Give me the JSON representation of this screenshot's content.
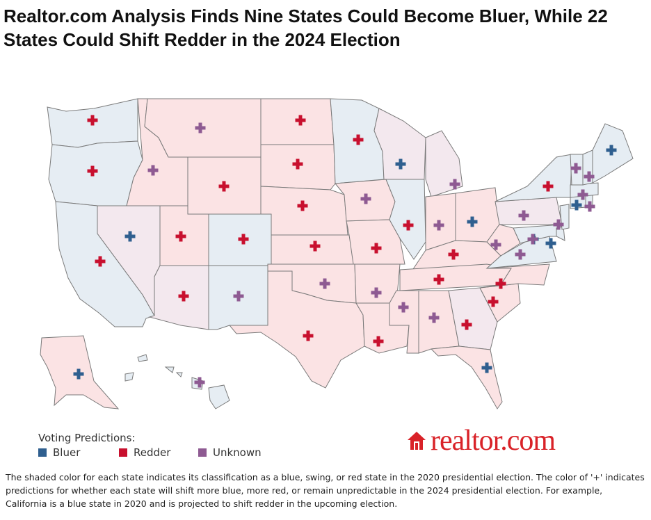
{
  "title": "Realtor.com Analysis Finds Nine States Could Become Bluer, While 22 States Could Shift Redder in the 2024 Election",
  "colors": {
    "blue_state": "#e6edf3",
    "swing_state": "#f3e8ee",
    "red_state": "#fbe3e4",
    "bluer": "#2f5f8f",
    "redder": "#c8102e",
    "unknown": "#8e5a92",
    "brand": "#d92228"
  },
  "legend": {
    "title": "Voting Predictions:",
    "items": [
      {
        "label": "Bluer",
        "color": "#2f5f8f"
      },
      {
        "label": "Redder",
        "color": "#c8102e"
      },
      {
        "label": "Unknown",
        "color": "#8e5a92"
      }
    ]
  },
  "brand": {
    "logo_text": "realtor.com",
    "icon": "house-icon"
  },
  "caption": "The shaded color for each state indicates its classification as a blue, swing, or red state in the 2020 presidential election. The color of '+' indicates predictions for whether each state will shift more blue, more red, or remain unpredictable in the 2024 presidential election. For example, California is a blue state in 2020 and is projected to shift redder in the upcoming election.",
  "map_data": {
    "states": [
      {
        "name": "Washington",
        "class2020": "blue",
        "prediction": "redder"
      },
      {
        "name": "Oregon",
        "class2020": "blue",
        "prediction": "redder"
      },
      {
        "name": "California",
        "class2020": "blue",
        "prediction": "redder"
      },
      {
        "name": "Nevada",
        "class2020": "swing",
        "prediction": "bluer"
      },
      {
        "name": "Idaho",
        "class2020": "red",
        "prediction": "unknown"
      },
      {
        "name": "Montana",
        "class2020": "red",
        "prediction": "unknown"
      },
      {
        "name": "Wyoming",
        "class2020": "red",
        "prediction": "redder"
      },
      {
        "name": "Utah",
        "class2020": "red",
        "prediction": "redder"
      },
      {
        "name": "Colorado",
        "class2020": "blue",
        "prediction": "redder"
      },
      {
        "name": "Arizona",
        "class2020": "swing",
        "prediction": "redder"
      },
      {
        "name": "New Mexico",
        "class2020": "blue",
        "prediction": "unknown"
      },
      {
        "name": "North Dakota",
        "class2020": "red",
        "prediction": "redder"
      },
      {
        "name": "South Dakota",
        "class2020": "red",
        "prediction": "redder"
      },
      {
        "name": "Nebraska",
        "class2020": "red",
        "prediction": "redder"
      },
      {
        "name": "Kansas",
        "class2020": "red",
        "prediction": "redder"
      },
      {
        "name": "Oklahoma",
        "class2020": "red",
        "prediction": "unknown"
      },
      {
        "name": "Texas",
        "class2020": "red",
        "prediction": "redder"
      },
      {
        "name": "Minnesota",
        "class2020": "blue",
        "prediction": "redder"
      },
      {
        "name": "Iowa",
        "class2020": "red",
        "prediction": "unknown"
      },
      {
        "name": "Missouri",
        "class2020": "red",
        "prediction": "redder"
      },
      {
        "name": "Arkansas",
        "class2020": "red",
        "prediction": "unknown"
      },
      {
        "name": "Louisiana",
        "class2020": "red",
        "prediction": "redder"
      },
      {
        "name": "Wisconsin",
        "class2020": "swing",
        "prediction": "bluer"
      },
      {
        "name": "Illinois",
        "class2020": "blue",
        "prediction": "redder"
      },
      {
        "name": "Michigan",
        "class2020": "swing",
        "prediction": "unknown"
      },
      {
        "name": "Indiana",
        "class2020": "red",
        "prediction": "unknown"
      },
      {
        "name": "Ohio",
        "class2020": "red",
        "prediction": "bluer"
      },
      {
        "name": "Kentucky",
        "class2020": "red",
        "prediction": "redder"
      },
      {
        "name": "Tennessee",
        "class2020": "red",
        "prediction": "redder"
      },
      {
        "name": "Mississippi",
        "class2020": "red",
        "prediction": "unknown"
      },
      {
        "name": "Alabama",
        "class2020": "red",
        "prediction": "unknown"
      },
      {
        "name": "Georgia",
        "class2020": "swing",
        "prediction": "redder"
      },
      {
        "name": "Florida",
        "class2020": "red",
        "prediction": "bluer"
      },
      {
        "name": "South Carolina",
        "class2020": "red",
        "prediction": "redder"
      },
      {
        "name": "North Carolina",
        "class2020": "red",
        "prediction": "redder"
      },
      {
        "name": "Virginia",
        "class2020": "blue",
        "prediction": "unknown"
      },
      {
        "name": "West Virginia",
        "class2020": "red",
        "prediction": "unknown"
      },
      {
        "name": "Pennsylvania",
        "class2020": "swing",
        "prediction": "unknown"
      },
      {
        "name": "New York",
        "class2020": "blue",
        "prediction": "redder"
      },
      {
        "name": "Maryland",
        "class2020": "blue",
        "prediction": "bluer"
      },
      {
        "name": "Delaware",
        "class2020": "blue",
        "prediction": "bluer"
      },
      {
        "name": "New Jersey",
        "class2020": "blue",
        "prediction": "unknown"
      },
      {
        "name": "District of Columbia",
        "class2020": "blue",
        "prediction": "unknown"
      },
      {
        "name": "Connecticut",
        "class2020": "blue",
        "prediction": "bluer"
      },
      {
        "name": "Rhode Island",
        "class2020": "blue",
        "prediction": "unknown"
      },
      {
        "name": "Massachusetts",
        "class2020": "blue",
        "prediction": "unknown"
      },
      {
        "name": "Vermont",
        "class2020": "blue",
        "prediction": "unknown"
      },
      {
        "name": "New Hampshire",
        "class2020": "blue",
        "prediction": "unknown"
      },
      {
        "name": "Maine",
        "class2020": "blue",
        "prediction": "bluer"
      },
      {
        "name": "Alaska",
        "class2020": "red",
        "prediction": "bluer"
      },
      {
        "name": "Hawaii",
        "class2020": "blue",
        "prediction": "unknown"
      }
    ]
  }
}
